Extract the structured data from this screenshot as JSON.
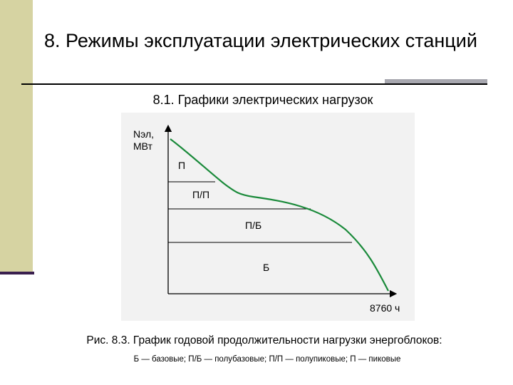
{
  "slide": {
    "title": "8. Режимы эксплуатации электрических станций",
    "subtitle": "8.1. Графики электрических нагрузок",
    "caption": "Рис. 8.3. График годовой продолжительности нагрузки энергоблоков:",
    "legend": "Б — базовые; П/Б — полубазовые; П/П — полупиковые; П — пиковые",
    "colors": {
      "curve": "#1a8a3a",
      "sidebar": "#d6d3a2",
      "accent": "#3a1f4e"
    }
  },
  "chart_data": {
    "type": "line",
    "ylabel_line1": "Nэл,",
    "ylabel_line2": "МВт",
    "xlabel": "8760 ч",
    "zones": [
      "П",
      "П/П",
      "П/Б",
      "Б"
    ]
  }
}
